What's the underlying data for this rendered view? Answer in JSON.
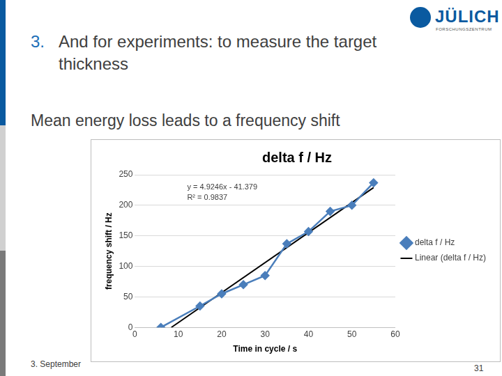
{
  "slide": {
    "logo": "JÜLICH",
    "logo_subtitle": "FORSCHUNGSZENTRUM",
    "heading_number": "3.",
    "heading": "And for experiments: to measure the target thickness",
    "subheading": "Mean energy loss leads to a frequency shift",
    "footer": "3. September",
    "page": "31"
  },
  "chart_data": {
    "type": "scatter",
    "title": "delta f / Hz",
    "x_label": "Time in cycle / s",
    "y_label": "frequency shift / Hz",
    "annotations": [
      "y = 4.9246x - 41.379",
      "R² = 0.9837"
    ],
    "xlim": [
      0,
      60
    ],
    "xticks": [
      0,
      10,
      20,
      30,
      40,
      50,
      60
    ],
    "ylim": [
      0,
      250
    ],
    "yticks": [
      0,
      50,
      100,
      150,
      200,
      250
    ],
    "grid": "y",
    "legend": "right",
    "series": [
      {
        "name": "delta f / Hz",
        "color": "#4a7ebb",
        "type": "line",
        "marker": "diamond",
        "line_style": "solid",
        "x": [
          6,
          15,
          20,
          25,
          30,
          35,
          40,
          45,
          50,
          55
        ],
        "values": [
          0,
          35,
          55,
          70,
          85,
          137,
          157,
          190,
          200,
          237
        ]
      },
      {
        "name": "Linear (delta f / Hz)",
        "color": "#000000",
        "type": "line",
        "marker": "none",
        "line_style": "solid",
        "x": [
          8.4,
          55
        ],
        "values": [
          0,
          229
        ]
      }
    ]
  }
}
